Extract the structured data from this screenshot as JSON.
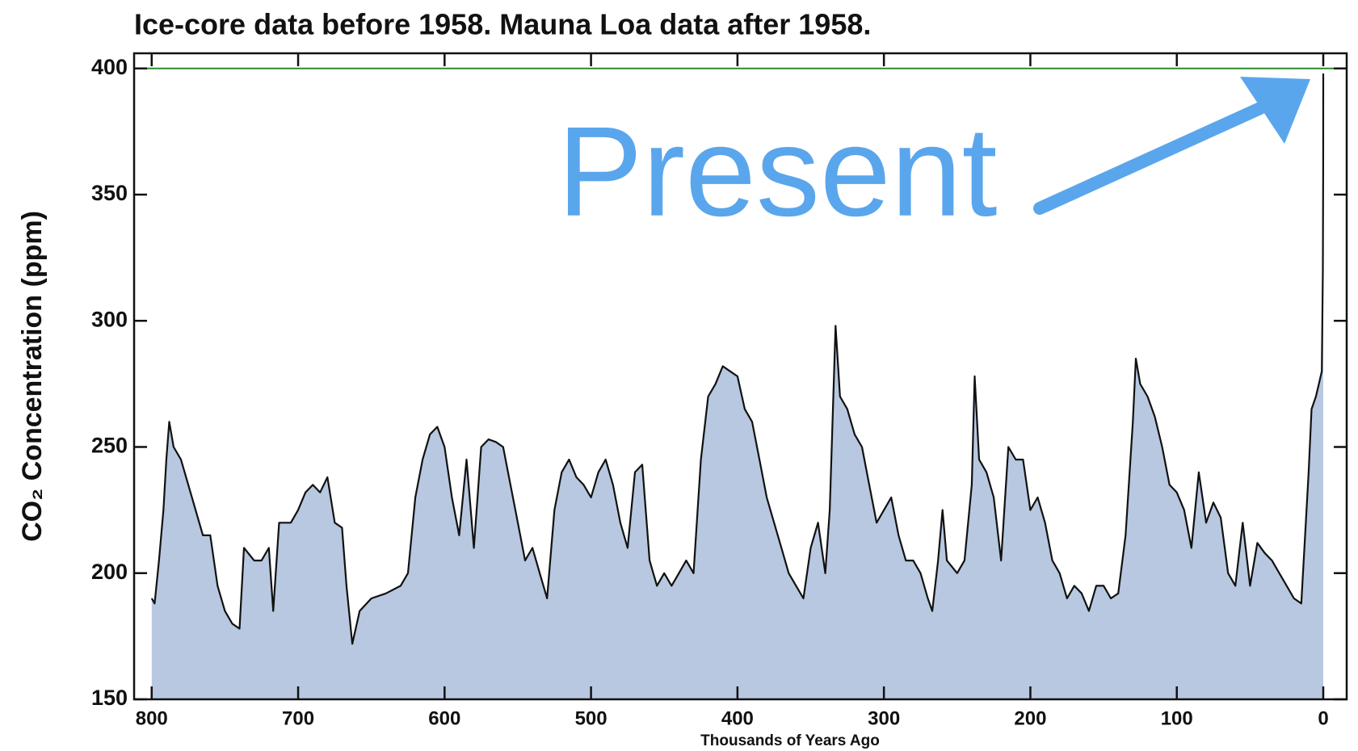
{
  "chart_data": {
    "type": "area",
    "title": "Ice-core data before 1958. Mauna Loa data after 1958.",
    "ylabel": "CO₂ Concentration (ppm)",
    "xlabel": "Thousands of Years Ago",
    "annotation": "Present",
    "color": "#b7c8e0",
    "line_color": "#111111",
    "annotation_color": "#5aa6ec",
    "hline": {
      "value": 400,
      "color": "#2e8b2e"
    },
    "xlim": [
      812,
      -16
    ],
    "ylim": [
      150,
      406
    ],
    "xticks": [
      800,
      700,
      600,
      500,
      400,
      300,
      200,
      100,
      0
    ],
    "yticks": [
      150,
      200,
      250,
      300,
      350,
      400
    ],
    "x": [
      800,
      798,
      795,
      792,
      790,
      788,
      785,
      780,
      775,
      770,
      765,
      760,
      755,
      750,
      745,
      740,
      737,
      730,
      725,
      720,
      717,
      713,
      705,
      700,
      695,
      690,
      685,
      680,
      675,
      670,
      667,
      663,
      658,
      650,
      640,
      630,
      625,
      620,
      615,
      610,
      605,
      600,
      595,
      590,
      585,
      580,
      575,
      570,
      565,
      560,
      555,
      550,
      545,
      540,
      535,
      530,
      525,
      520,
      515,
      510,
      505,
      500,
      495,
      490,
      485,
      480,
      475,
      470,
      465,
      460,
      455,
      450,
      445,
      440,
      435,
      430,
      425,
      420,
      415,
      410,
      405,
      400,
      395,
      390,
      385,
      380,
      375,
      370,
      365,
      360,
      355,
      350,
      345,
      340,
      337,
      333,
      330,
      325,
      320,
      315,
      310,
      305,
      300,
      295,
      290,
      285,
      280,
      275,
      270,
      267,
      263,
      260,
      257,
      250,
      245,
      240,
      238,
      235,
      230,
      225,
      220,
      215,
      210,
      205,
      200,
      195,
      190,
      185,
      180,
      175,
      170,
      165,
      160,
      155,
      150,
      145,
      140,
      135,
      130,
      128,
      125,
      120,
      115,
      110,
      105,
      100,
      95,
      90,
      85,
      80,
      75,
      70,
      65,
      60,
      55,
      50,
      45,
      40,
      35,
      30,
      25,
      20,
      15,
      10,
      8,
      5,
      3,
      1,
      0.3,
      0.05,
      0
    ],
    "values": [
      190,
      188,
      205,
      225,
      245,
      260,
      250,
      245,
      235,
      225,
      215,
      215,
      195,
      185,
      180,
      178,
      210,
      205,
      205,
      210,
      185,
      220,
      220,
      225,
      232,
      235,
      232,
      238,
      220,
      218,
      195,
      172,
      185,
      190,
      192,
      195,
      200,
      230,
      245,
      255,
      258,
      250,
      230,
      215,
      245,
      210,
      250,
      253,
      252,
      250,
      235,
      220,
      205,
      210,
      200,
      190,
      225,
      240,
      245,
      238,
      235,
      230,
      240,
      245,
      235,
      220,
      210,
      240,
      243,
      205,
      195,
      200,
      195,
      200,
      205,
      200,
      245,
      270,
      275,
      282,
      280,
      278,
      265,
      260,
      245,
      230,
      220,
      210,
      200,
      195,
      190,
      210,
      220,
      200,
      225,
      298,
      270,
      265,
      255,
      250,
      235,
      220,
      225,
      230,
      215,
      205,
      205,
      200,
      190,
      185,
      205,
      225,
      205,
      200,
      205,
      235,
      278,
      245,
      240,
      230,
      205,
      250,
      245,
      245,
      225,
      230,
      220,
      205,
      200,
      190,
      195,
      192,
      185,
      195,
      195,
      190,
      192,
      215,
      260,
      285,
      275,
      270,
      262,
      250,
      235,
      232,
      225,
      210,
      240,
      220,
      228,
      222,
      200,
      195,
      220,
      195,
      212,
      208,
      205,
      200,
      195,
      190,
      188,
      240,
      265,
      270,
      275,
      280,
      320,
      360,
      398
    ]
  }
}
